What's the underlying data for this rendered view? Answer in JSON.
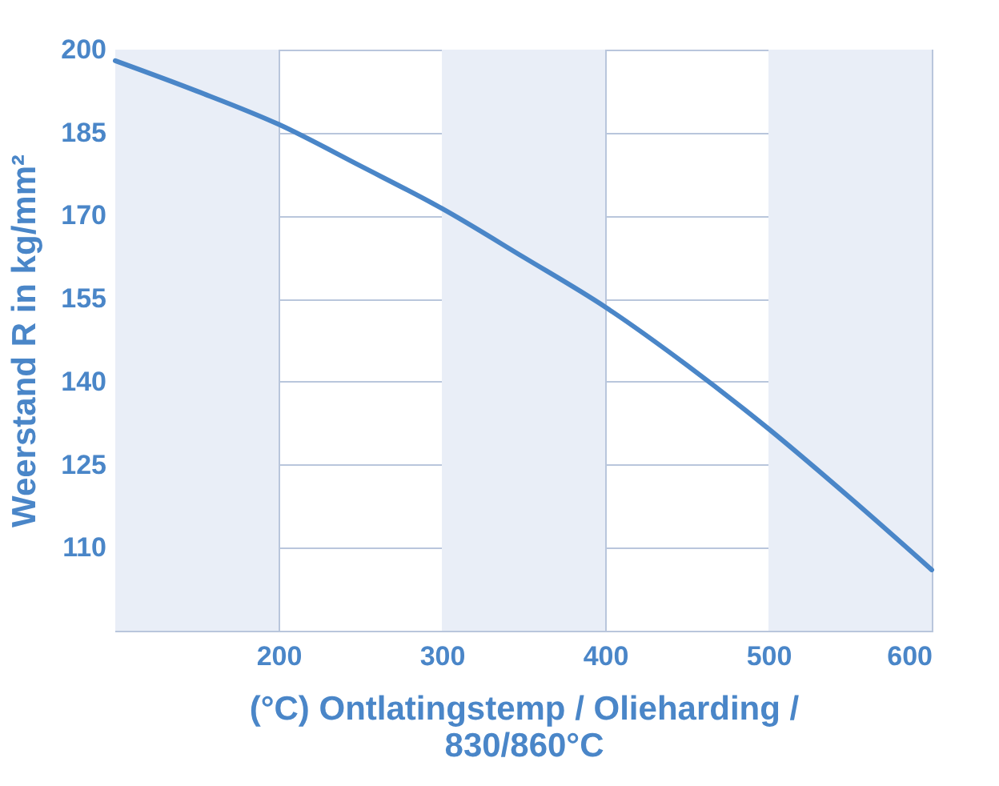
{
  "chart_data": {
    "type": "line",
    "xlabel": "(°C) Ontlatingstemp / Olieharding / 830/860°C",
    "ylabel": "Weerstand R in kg/mm²",
    "x": [
      100,
      150,
      200,
      250,
      300,
      350,
      400,
      450,
      500,
      550,
      600
    ],
    "series": [
      {
        "color": "#4a86c8",
        "values": [
          198,
          192.5,
          186.5,
          179,
          171.3,
          162.5,
          153.5,
          143,
          131.5,
          119,
          106
        ]
      }
    ],
    "xlim": [
      100,
      600
    ],
    "xticks": [
      200,
      300,
      400,
      500,
      600
    ],
    "ylim": [
      95,
      200
    ],
    "yticks": [
      110,
      125,
      140,
      155,
      170,
      185,
      200
    ],
    "bands": [
      {
        "axis": "x",
        "from": 100,
        "to": 200,
        "color": "#e9eef7"
      },
      {
        "axis": "x",
        "from": 300,
        "to": 400,
        "color": "#e9eef7"
      },
      {
        "axis": "x",
        "from": 500,
        "to": 600,
        "color": "#e9eef7"
      }
    ],
    "grid": true,
    "marker": "none",
    "line_style": "solid"
  }
}
